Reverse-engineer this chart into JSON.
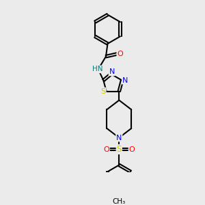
{
  "bg_color": "#ebebeb",
  "line_color": "#000000",
  "bond_width": 1.5,
  "atom_colors": {
    "N": "#0000ff",
    "O": "#ff0000",
    "S": "#cccc00",
    "H": "#008080",
    "C": "#000000"
  },
  "fig_width": 3.0,
  "fig_height": 3.0,
  "dpi": 100
}
